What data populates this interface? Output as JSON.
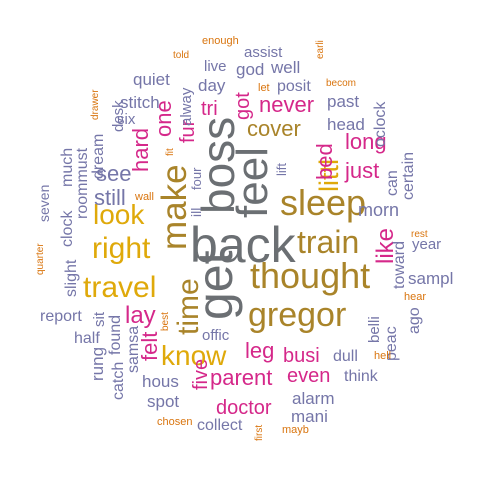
{
  "colors": {
    "gray": "#6b6f73",
    "brown": "#a9842a",
    "gold": "#dfa90a",
    "magenta": "#d5288a",
    "slate": "#7576a8",
    "orange": "#d9750f"
  },
  "words": [
    {
      "text": "back"
    },
    {
      "text": "get"
    },
    {
      "text": "boss"
    },
    {
      "text": "feel"
    },
    {
      "text": "sleep"
    },
    {
      "text": "make"
    },
    {
      "text": "thought"
    },
    {
      "text": "train"
    },
    {
      "text": "gregor"
    },
    {
      "text": "time"
    },
    {
      "text": "travel"
    },
    {
      "text": "right"
    },
    {
      "text": "look"
    },
    {
      "text": "know"
    },
    {
      "text": "littl"
    },
    {
      "text": "cover"
    },
    {
      "text": "never"
    },
    {
      "text": "busi"
    },
    {
      "text": "parent"
    },
    {
      "text": "leg"
    },
    {
      "text": "even"
    },
    {
      "text": "doctor"
    },
    {
      "text": "like"
    },
    {
      "text": "just"
    },
    {
      "text": "long"
    },
    {
      "text": "bed"
    },
    {
      "text": "lay"
    },
    {
      "text": "felt"
    },
    {
      "text": "see"
    },
    {
      "text": "still"
    },
    {
      "text": "hard"
    },
    {
      "text": "one"
    },
    {
      "text": "tri"
    },
    {
      "text": "fur"
    },
    {
      "text": "got"
    },
    {
      "text": "five"
    },
    {
      "text": "morn"
    },
    {
      "text": "past"
    },
    {
      "text": "head"
    },
    {
      "text": "oclock"
    },
    {
      "text": "can"
    },
    {
      "text": "certain"
    },
    {
      "text": "toward"
    },
    {
      "text": "year"
    },
    {
      "text": "sampl"
    },
    {
      "text": "ago"
    },
    {
      "text": "peac"
    },
    {
      "text": "belli"
    },
    {
      "text": "dull"
    },
    {
      "text": "think"
    },
    {
      "text": "alarm"
    },
    {
      "text": "mani"
    },
    {
      "text": "collect"
    },
    {
      "text": "spot"
    },
    {
      "text": "hous"
    },
    {
      "text": "catch"
    },
    {
      "text": "samsa"
    },
    {
      "text": "rung"
    },
    {
      "text": "found"
    },
    {
      "text": "half"
    },
    {
      "text": "sit"
    },
    {
      "text": "report"
    },
    {
      "text": "slight"
    },
    {
      "text": "clock"
    },
    {
      "text": "seven"
    },
    {
      "text": "roommust"
    },
    {
      "text": "much"
    },
    {
      "text": "dream"
    },
    {
      "text": "desk"
    },
    {
      "text": "six"
    },
    {
      "text": "stitch"
    },
    {
      "text": "quiet"
    },
    {
      "text": "alway"
    },
    {
      "text": "day"
    },
    {
      "text": "live"
    },
    {
      "text": "god"
    },
    {
      "text": "well"
    },
    {
      "text": "assist"
    },
    {
      "text": "posit"
    },
    {
      "text": "lift"
    },
    {
      "text": "four"
    },
    {
      "text": "ill"
    },
    {
      "text": "offic"
    },
    {
      "text": "enough"
    },
    {
      "text": "told"
    },
    {
      "text": "let"
    },
    {
      "text": "becom"
    },
    {
      "text": "earli"
    },
    {
      "text": "drawer"
    },
    {
      "text": "fit"
    },
    {
      "text": "wall"
    },
    {
      "text": "quarter"
    },
    {
      "text": "best"
    },
    {
      "text": "chosen"
    },
    {
      "text": "first"
    },
    {
      "text": "mayb"
    },
    {
      "text": "hell"
    },
    {
      "text": "hear"
    },
    {
      "text": "rest"
    }
  ]
}
